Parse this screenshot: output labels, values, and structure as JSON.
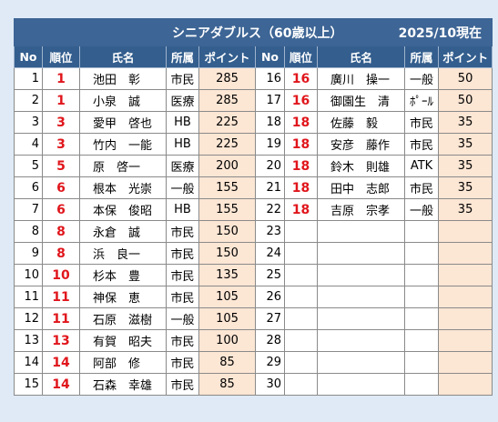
{
  "title": "シニアダブルス（60歳以上）",
  "date": "2025/10現在",
  "headers": [
    "No",
    "順位",
    "氏名",
    "所属",
    "ポイント"
  ],
  "left": [
    [
      "1",
      "1",
      "池田　彰",
      "市民",
      "285"
    ],
    [
      "2",
      "1",
      "小泉　誠",
      "医療",
      "285"
    ],
    [
      "3",
      "3",
      "愛甲　啓也",
      "HB",
      "225"
    ],
    [
      "4",
      "3",
      "竹内　一能",
      "HB",
      "225"
    ],
    [
      "5",
      "5",
      "原　啓一",
      "医療",
      "200"
    ],
    [
      "6",
      "6",
      "根本　光崇",
      "一般",
      "155"
    ],
    [
      "7",
      "6",
      "本保　俊昭",
      "HB",
      "155"
    ],
    [
      "8",
      "8",
      "永倉　誠",
      "市民",
      "150"
    ],
    [
      "9",
      "8",
      "浜　良一",
      "市民",
      "150"
    ],
    [
      "10",
      "10",
      "杉本　豊",
      "市民",
      "135"
    ],
    [
      "11",
      "11",
      "神保　恵",
      "市民",
      "105"
    ],
    [
      "12",
      "11",
      "石原　滋樹",
      "一般",
      "105"
    ],
    [
      "13",
      "13",
      "有賀　昭夫",
      "市民",
      "100"
    ],
    [
      "14",
      "14",
      "阿部　修",
      "市民",
      "85"
    ],
    [
      "15",
      "14",
      "石森　幸雄",
      "市民",
      "85"
    ]
  ],
  "right": [
    [
      "16",
      "16",
      "廣川　操一",
      "一般",
      "50"
    ],
    [
      "17",
      "16",
      "御園生　清",
      "ﾎﾟｰﾙ",
      "50"
    ],
    [
      "18",
      "18",
      "佐藤　毅",
      "市民",
      "35"
    ],
    [
      "19",
      "18",
      "安彦　藤作",
      "市民",
      "35"
    ],
    [
      "20",
      "18",
      "鈴木　則雄",
      "ATK",
      "35"
    ],
    [
      "21",
      "18",
      "田中　志郎",
      "市民",
      "35"
    ],
    [
      "22",
      "18",
      "吉原　宗孝",
      "一般",
      "35"
    ],
    [
      "23"
    ],
    [
      "24"
    ],
    [
      "25"
    ],
    [
      "26"
    ],
    [
      "27"
    ],
    [
      "28"
    ],
    [
      "29"
    ],
    [
      "30"
    ]
  ]
}
